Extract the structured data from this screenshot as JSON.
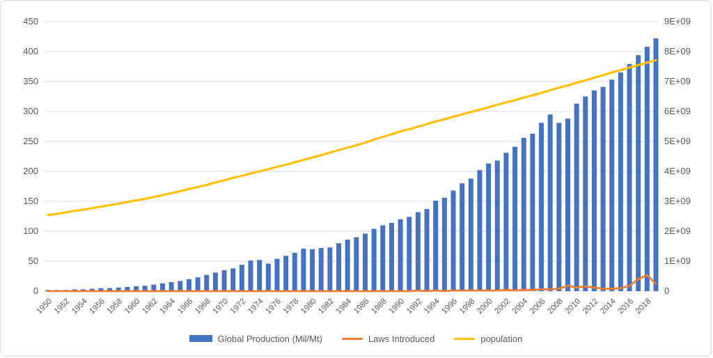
{
  "colors": {
    "production_bar": "#4472C4",
    "laws_line": "#ED7D31",
    "population_line": "#FFC000",
    "gridline": "#D9D9D9",
    "axis_text": "#595959",
    "frame_border": "#D9D9D9",
    "background": "#FFFFFF"
  },
  "legend": {
    "items": [
      {
        "label": "Global Production (Mil/Mt)",
        "swatch": "bar",
        "color": "#4472C4"
      },
      {
        "label": "Laws Introduced",
        "swatch": "line",
        "color": "#ED7D31"
      },
      {
        "label": "population",
        "swatch": "line",
        "color": "#FFC000"
      }
    ]
  },
  "chart_data": {
    "type": "bar",
    "title": "",
    "xlabel": "",
    "ylabel": "",
    "grid": true,
    "legend_position": "bottom",
    "categories": [
      1950,
      1951,
      1952,
      1953,
      1954,
      1955,
      1956,
      1957,
      1958,
      1959,
      1960,
      1961,
      1962,
      1963,
      1964,
      1965,
      1966,
      1967,
      1968,
      1969,
      1970,
      1971,
      1972,
      1973,
      1974,
      1975,
      1976,
      1977,
      1978,
      1979,
      1980,
      1981,
      1982,
      1983,
      1984,
      1985,
      1986,
      1987,
      1988,
      1989,
      1990,
      1991,
      1992,
      1993,
      1994,
      1995,
      1996,
      1997,
      1998,
      1999,
      2000,
      2001,
      2002,
      2003,
      2004,
      2005,
      2006,
      2007,
      2008,
      2009,
      2010,
      2011,
      2012,
      2013,
      2014,
      2015,
      2016,
      2017,
      2018,
      2019
    ],
    "x_tick_labels": [
      "1950",
      "1952",
      "1954",
      "1956",
      "1958",
      "1960",
      "1962",
      "1964",
      "1966",
      "1968",
      "1970",
      "1972",
      "1974",
      "1976",
      "1978",
      "1980",
      "1982",
      "1984",
      "1986",
      "1988",
      "1990",
      "1992",
      "1994",
      "1996",
      "1998",
      "2000",
      "2002",
      "2004",
      "2006",
      "2008",
      "2010",
      "2012",
      "2014",
      "2016",
      "2018"
    ],
    "left_axis": {
      "min": 0,
      "max": 450,
      "step": 50,
      "tick_labels": [
        "0",
        "50",
        "100",
        "150",
        "200",
        "250",
        "300",
        "350",
        "400",
        "450"
      ]
    },
    "right_axis": {
      "min": 0,
      "max": 9000000000,
      "step": 1000000000,
      "tick_labels": [
        "0",
        "1E+09",
        "2E+09",
        "3E+09",
        "4E+09",
        "5E+09",
        "6E+09",
        "7E+09",
        "8E+09",
        "9E+09"
      ]
    },
    "series": [
      {
        "name": "Global Production (Mil/Mt)",
        "type": "bar",
        "axis": "left",
        "color": "#4472C4",
        "values": [
          2,
          2,
          2,
          3,
          3,
          4,
          5,
          5,
          6,
          7,
          8,
          9,
          11,
          13,
          15,
          17,
          20,
          23,
          27,
          31,
          35,
          38,
          44,
          51,
          52,
          46,
          54,
          59,
          64,
          71,
          70,
          72,
          73,
          80,
          86,
          90,
          96,
          104,
          110,
          114,
          120,
          124,
          132,
          137,
          151,
          156,
          168,
          180,
          188,
          202,
          213,
          218,
          231,
          241,
          256,
          263,
          281,
          295,
          281,
          288,
          313,
          325,
          335,
          341,
          353,
          365,
          379,
          394,
          408,
          422
        ]
      },
      {
        "name": "Laws Introduced",
        "type": "line",
        "axis": "left",
        "color": "#ED7D31",
        "values": [
          0,
          0,
          0,
          0,
          0,
          0,
          0,
          0,
          0,
          0,
          0,
          0,
          0,
          0,
          0,
          0,
          0,
          0,
          0,
          0,
          0,
          0,
          0,
          0,
          0,
          0,
          0,
          0,
          0,
          0,
          0,
          0,
          0,
          0,
          0,
          0,
          0,
          0,
          0,
          0,
          0,
          0,
          1,
          0,
          1,
          0,
          1,
          1,
          1,
          1,
          1,
          1,
          2,
          1,
          2,
          2,
          3,
          3,
          4,
          9,
          6,
          8,
          6,
          4,
          4,
          5,
          9,
          20,
          27,
          12
        ]
      },
      {
        "name": "population",
        "type": "line",
        "axis": "right",
        "unit": "billions",
        "color": "#FFC000",
        "values": [
          2.54,
          2.58,
          2.63,
          2.68,
          2.72,
          2.77,
          2.82,
          2.87,
          2.92,
          2.98,
          3.03,
          3.08,
          3.14,
          3.21,
          3.27,
          3.34,
          3.41,
          3.48,
          3.55,
          3.63,
          3.7,
          3.78,
          3.85,
          3.93,
          4.0,
          4.07,
          4.15,
          4.22,
          4.3,
          4.38,
          4.46,
          4.54,
          4.63,
          4.71,
          4.79,
          4.87,
          4.96,
          5.06,
          5.15,
          5.24,
          5.33,
          5.41,
          5.49,
          5.58,
          5.66,
          5.74,
          5.82,
          5.9,
          5.98,
          6.06,
          6.14,
          6.22,
          6.3,
          6.38,
          6.46,
          6.54,
          6.62,
          6.71,
          6.79,
          6.87,
          6.96,
          7.04,
          7.13,
          7.21,
          7.3,
          7.38,
          7.47,
          7.55,
          7.63,
          7.71
        ]
      }
    ]
  }
}
